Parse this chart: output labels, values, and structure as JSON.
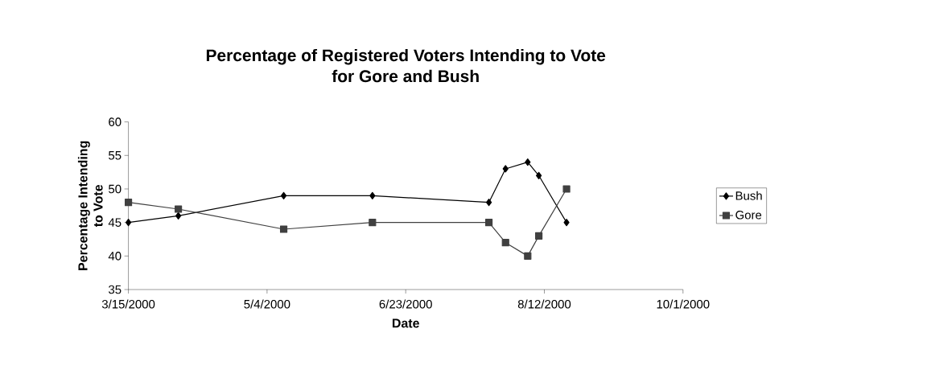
{
  "chart_data": {
    "type": "line",
    "title": "Percentage of Registered Voters Intending to Vote\nfor Gore and Bush",
    "xlabel": "Date",
    "ylabel": "Percentage Intending\nto Vote",
    "x": [
      "2000-03-15",
      "2000-04-02",
      "2000-05-10",
      "2000-06-11",
      "2000-07-23",
      "2000-07-29",
      "2000-08-06",
      "2000-08-10",
      "2000-08-20"
    ],
    "series": [
      {
        "name": "Bush",
        "color": "#000000",
        "marker": "diamond",
        "values": [
          45,
          46,
          49,
          49,
          48,
          53,
          54,
          52,
          45
        ]
      },
      {
        "name": "Gore",
        "color": "#404040",
        "marker": "square",
        "values": [
          48,
          47,
          44,
          45,
          45,
          42,
          40,
          43,
          50
        ]
      }
    ],
    "xlim": [
      "2000-03-15",
      "2000-10-01"
    ],
    "xticks": [
      {
        "value": "2000-03-15",
        "label": "3/15/2000"
      },
      {
        "value": "2000-05-04",
        "label": "5/4/2000"
      },
      {
        "value": "2000-06-23",
        "label": "6/23/2000"
      },
      {
        "value": "2000-08-12",
        "label": "8/12/2000"
      },
      {
        "value": "2000-10-01",
        "label": "10/1/2000"
      }
    ],
    "ylim": [
      35,
      60
    ],
    "yticks": [
      35,
      40,
      45,
      50,
      55,
      60
    ],
    "grid": false,
    "legend": "right"
  }
}
